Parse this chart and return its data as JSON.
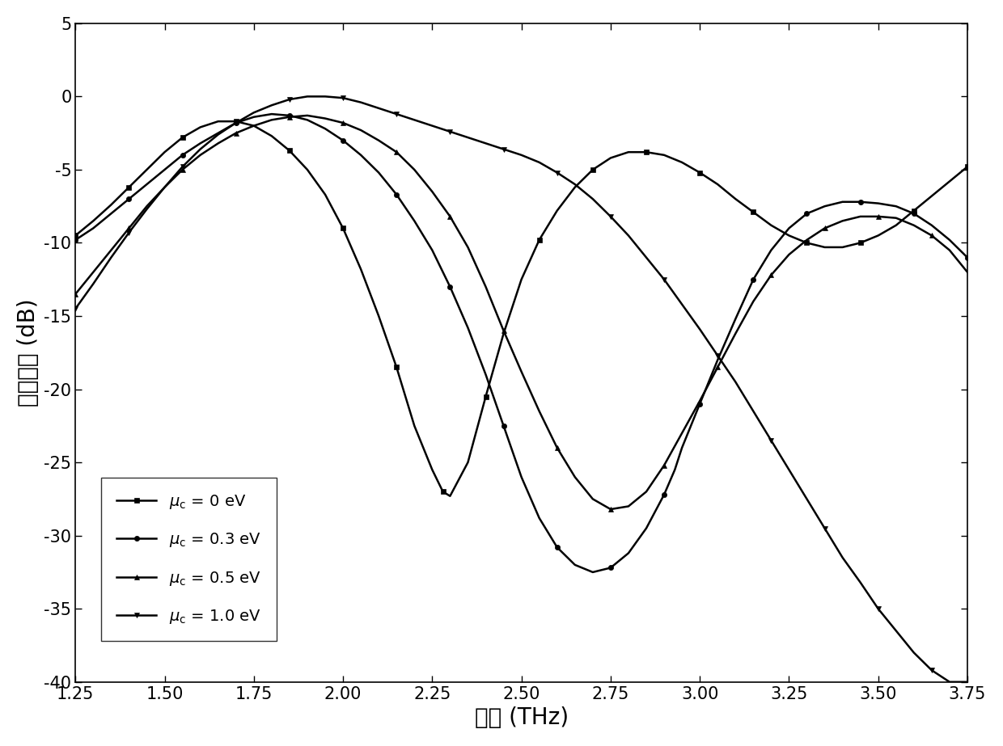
{
  "title": "",
  "xlabel": "频率 (THz)",
  "ylabel": "传输系数 (dB)",
  "xlim": [
    1.25,
    3.75
  ],
  "ylim": [
    -40,
    5
  ],
  "xticks": [
    1.25,
    1.5,
    1.75,
    2.0,
    2.25,
    2.5,
    2.75,
    3.0,
    3.25,
    3.5,
    3.75
  ],
  "yticks": [
    5,
    0,
    -5,
    -10,
    -15,
    -20,
    -25,
    -30,
    -35,
    -40
  ],
  "line_color": "#000000",
  "markers": [
    "s",
    "o",
    "^",
    "v"
  ],
  "markersize": 4.5,
  "markevery": 3,
  "linewidth": 1.8,
  "background_color": "#ffffff",
  "curves": {
    "mu0": {
      "x": [
        1.25,
        1.3,
        1.35,
        1.4,
        1.45,
        1.5,
        1.55,
        1.6,
        1.65,
        1.7,
        1.75,
        1.8,
        1.85,
        1.9,
        1.95,
        2.0,
        2.05,
        2.1,
        2.15,
        2.2,
        2.25,
        2.28,
        2.3,
        2.35,
        2.4,
        2.45,
        2.5,
        2.55,
        2.6,
        2.65,
        2.7,
        2.75,
        2.8,
        2.85,
        2.9,
        2.95,
        3.0,
        3.05,
        3.1,
        3.15,
        3.2,
        3.25,
        3.3,
        3.35,
        3.4,
        3.45,
        3.5,
        3.55,
        3.6,
        3.65,
        3.7,
        3.75
      ],
      "y": [
        -9.5,
        -8.5,
        -7.4,
        -6.2,
        -5.0,
        -3.8,
        -2.8,
        -2.1,
        -1.7,
        -1.7,
        -2.0,
        -2.7,
        -3.7,
        -5.0,
        -6.7,
        -9.0,
        -11.8,
        -15.0,
        -18.5,
        -22.5,
        -25.5,
        -27.0,
        -27.3,
        -25.0,
        -20.5,
        -16.2,
        -12.5,
        -9.8,
        -7.8,
        -6.2,
        -5.0,
        -4.2,
        -3.8,
        -3.8,
        -4.0,
        -4.5,
        -5.2,
        -6.0,
        -7.0,
        -7.9,
        -8.8,
        -9.5,
        -10.0,
        -10.3,
        -10.3,
        -10.0,
        -9.5,
        -8.8,
        -7.8,
        -6.8,
        -5.8,
        -4.8
      ]
    },
    "mu03": {
      "x": [
        1.25,
        1.3,
        1.35,
        1.4,
        1.45,
        1.5,
        1.55,
        1.6,
        1.65,
        1.7,
        1.75,
        1.8,
        1.85,
        1.9,
        1.95,
        2.0,
        2.05,
        2.1,
        2.15,
        2.2,
        2.25,
        2.3,
        2.35,
        2.4,
        2.45,
        2.5,
        2.55,
        2.6,
        2.65,
        2.7,
        2.75,
        2.8,
        2.85,
        2.9,
        2.93,
        2.95,
        3.0,
        3.05,
        3.1,
        3.15,
        3.2,
        3.25,
        3.3,
        3.35,
        3.4,
        3.45,
        3.5,
        3.55,
        3.6,
        3.65,
        3.7,
        3.75
      ],
      "y": [
        -9.8,
        -9.0,
        -8.0,
        -7.0,
        -6.0,
        -5.0,
        -4.0,
        -3.2,
        -2.5,
        -1.8,
        -1.4,
        -1.2,
        -1.3,
        -1.6,
        -2.2,
        -3.0,
        -4.0,
        -5.2,
        -6.7,
        -8.5,
        -10.5,
        -13.0,
        -15.8,
        -19.0,
        -22.5,
        -26.0,
        -28.8,
        -30.8,
        -32.0,
        -32.5,
        -32.2,
        -31.2,
        -29.5,
        -27.2,
        -25.5,
        -24.0,
        -21.0,
        -18.0,
        -15.2,
        -12.5,
        -10.5,
        -9.0,
        -8.0,
        -7.5,
        -7.2,
        -7.2,
        -7.3,
        -7.5,
        -8.0,
        -8.8,
        -9.8,
        -11.0
      ]
    },
    "mu05": {
      "x": [
        1.25,
        1.3,
        1.35,
        1.4,
        1.45,
        1.5,
        1.55,
        1.6,
        1.65,
        1.7,
        1.75,
        1.8,
        1.85,
        1.9,
        1.95,
        2.0,
        2.05,
        2.1,
        2.15,
        2.2,
        2.25,
        2.3,
        2.35,
        2.4,
        2.45,
        2.5,
        2.55,
        2.6,
        2.65,
        2.7,
        2.75,
        2.8,
        2.85,
        2.9,
        2.95,
        3.0,
        3.05,
        3.1,
        3.15,
        3.2,
        3.25,
        3.3,
        3.35,
        3.4,
        3.45,
        3.5,
        3.55,
        3.6,
        3.65,
        3.7,
        3.75
      ],
      "y": [
        -13.5,
        -12.0,
        -10.5,
        -9.0,
        -7.5,
        -6.2,
        -5.0,
        -4.0,
        -3.2,
        -2.5,
        -2.0,
        -1.6,
        -1.4,
        -1.3,
        -1.5,
        -1.8,
        -2.3,
        -3.0,
        -3.8,
        -5.0,
        -6.5,
        -8.2,
        -10.3,
        -13.0,
        -16.0,
        -18.8,
        -21.5,
        -24.0,
        -26.0,
        -27.5,
        -28.2,
        -28.0,
        -27.0,
        -25.2,
        -23.0,
        -20.8,
        -18.5,
        -16.2,
        -14.0,
        -12.2,
        -10.8,
        -9.8,
        -9.0,
        -8.5,
        -8.2,
        -8.2,
        -8.3,
        -8.8,
        -9.5,
        -10.5,
        -12.0
      ]
    },
    "mu10": {
      "x": [
        1.25,
        1.3,
        1.35,
        1.4,
        1.45,
        1.5,
        1.55,
        1.6,
        1.65,
        1.7,
        1.75,
        1.8,
        1.85,
        1.9,
        1.95,
        2.0,
        2.05,
        2.1,
        2.15,
        2.2,
        2.25,
        2.3,
        2.35,
        2.4,
        2.45,
        2.5,
        2.55,
        2.6,
        2.65,
        2.7,
        2.75,
        2.8,
        2.85,
        2.9,
        2.95,
        3.0,
        3.05,
        3.1,
        3.15,
        3.2,
        3.25,
        3.3,
        3.35,
        3.4,
        3.45,
        3.5,
        3.55,
        3.6,
        3.65,
        3.7,
        3.75
      ],
      "y": [
        -14.5,
        -12.8,
        -11.0,
        -9.3,
        -7.7,
        -6.2,
        -4.8,
        -3.6,
        -2.6,
        -1.8,
        -1.1,
        -0.6,
        -0.2,
        -0.0,
        -0.0,
        -0.1,
        -0.4,
        -0.8,
        -1.2,
        -1.6,
        -2.0,
        -2.4,
        -2.8,
        -3.2,
        -3.6,
        -4.0,
        -4.5,
        -5.2,
        -6.0,
        -7.0,
        -8.2,
        -9.5,
        -11.0,
        -12.5,
        -14.2,
        -15.9,
        -17.7,
        -19.5,
        -21.5,
        -23.5,
        -25.5,
        -27.5,
        -29.5,
        -31.5,
        -33.2,
        -35.0,
        -36.5,
        -38.0,
        -39.2,
        -40.0,
        -40.0
      ]
    }
  }
}
